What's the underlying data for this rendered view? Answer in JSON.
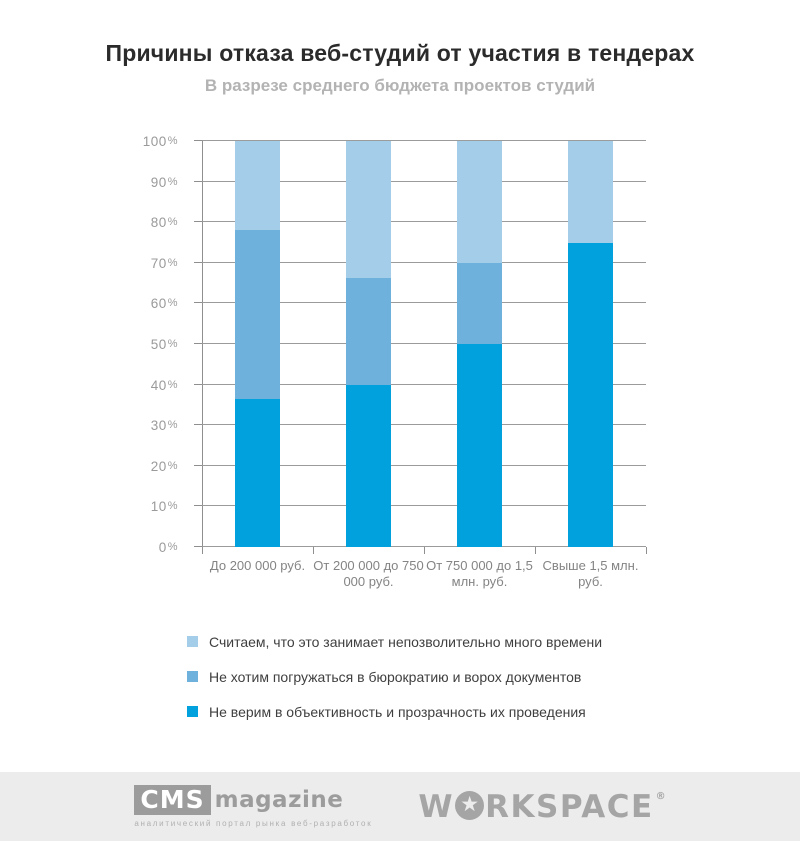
{
  "header": {
    "title": "Причины отказа веб-студий от участия в тендерах",
    "subtitle": "В разрезе среднего бюджета проектов студий"
  },
  "chart_data": {
    "type": "bar",
    "stacked": true,
    "title": "Причины отказа веб-студий от участия в тендерах",
    "subtitle": "В разрезе среднего бюджета проектов студий",
    "categories": [
      "До 200 000 руб.",
      "От 200 000 до 750 000 руб.",
      "От 750 000 до 1,5 млн. руб.",
      "Свыше 1,5 млн. руб."
    ],
    "series": [
      {
        "name": "Не верим в объективность и прозрачность их проведения",
        "color": "#00a1dc",
        "values": [
          36.5,
          40,
          50,
          75
        ]
      },
      {
        "name": "Не хотим погружаться в бюрократию и ворох документов",
        "color": "#6eb1dd",
        "values": [
          41.7,
          26.2,
          20,
          0
        ]
      },
      {
        "name": "Считаем, что это занимает непозволительно много времени",
        "color": "#a3cde9",
        "values": [
          21.8,
          33.8,
          30,
          25
        ]
      }
    ],
    "xlabel": "",
    "ylabel": "",
    "ylim": [
      0,
      100
    ],
    "ytick_step": 10,
    "ytick_suffix": "%",
    "yticks": [
      "0%",
      "10%",
      "20%",
      "30%",
      "40%",
      "50%",
      "60%",
      "70%",
      "80%",
      "90%",
      "100%"
    ],
    "grid": true,
    "legend_position": "bottom-left"
  },
  "legend": {
    "items": [
      {
        "label": "Считаем, что это занимает непозволительно много времени",
        "color": "#a3cde9"
      },
      {
        "label": "Не хотим погружаться в бюрократию и ворох документов",
        "color": "#6eb1dd"
      },
      {
        "label": "Не верим в объективность и прозрачность их проведения",
        "color": "#00a1dc"
      }
    ]
  },
  "footer": {
    "cms_logo": {
      "box_text": "CMS",
      "word": "magazine",
      "tagline": "аналитический портал рынка веб-разработок"
    },
    "workspace_logo": {
      "prefix": "W",
      "star": "★",
      "suffix": "RKSPACE",
      "registered": "®"
    }
  },
  "colors": {
    "bar_dark": "#00a1dc",
    "bar_medium": "#6eb1dd",
    "bar_light": "#a3cde9",
    "grid": "#9b9b9b",
    "footer_bg": "#ececec",
    "title_text": "#2b2b2b",
    "subtitle_text": "#b3b3b3"
  }
}
